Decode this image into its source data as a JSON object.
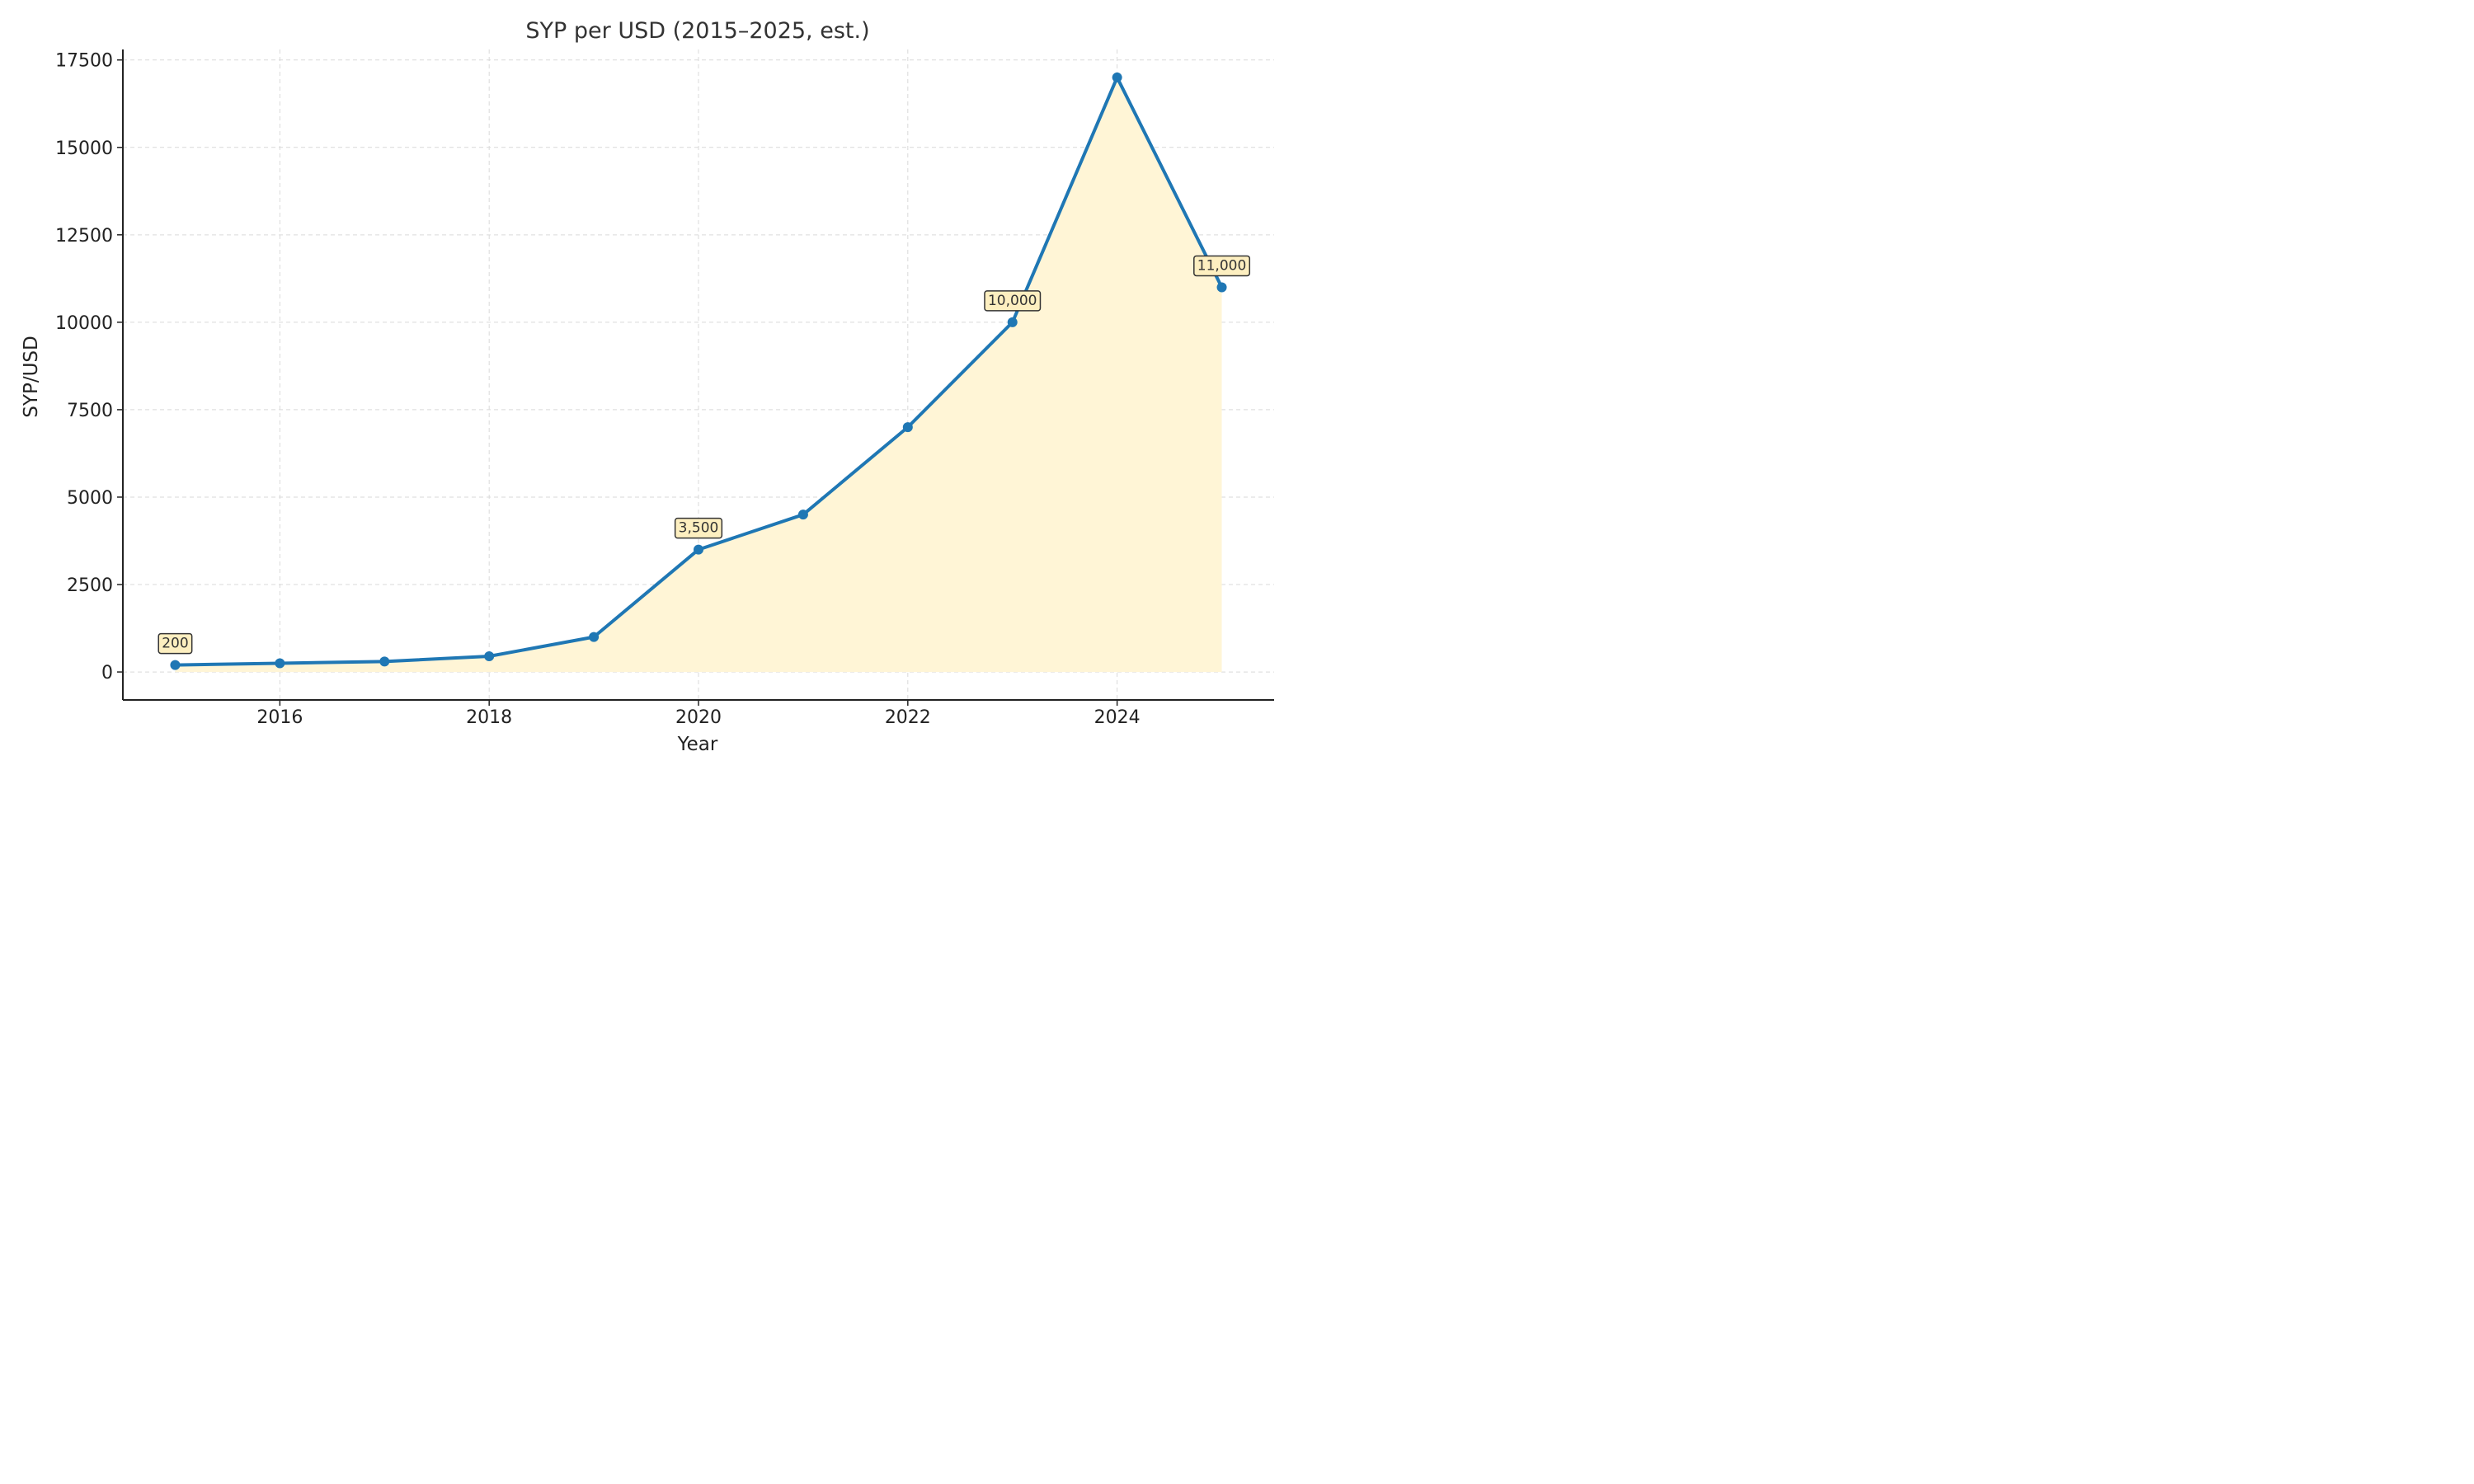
{
  "chart_data": {
    "type": "area",
    "title": "SYP per USD (2015–2025, est.)",
    "xlabel": "Year",
    "ylabel": "SYP/USD",
    "x": [
      2015,
      2016,
      2017,
      2018,
      2019,
      2020,
      2021,
      2022,
      2023,
      2024,
      2025
    ],
    "series": [
      {
        "values": [
          200,
          250,
          300,
          450,
          1000,
          3500,
          4500,
          7000,
          10000,
          17000,
          11000
        ]
      }
    ],
    "xlim": [
      2014.5,
      2025.5
    ],
    "ylim": [
      -800,
      17800
    ],
    "xticks": [
      2016,
      2018,
      2020,
      2022,
      2024
    ],
    "xtick_labels": [
      "2016",
      "2018",
      "2020",
      "2022",
      "2024"
    ],
    "yticks": [
      0,
      2500,
      5000,
      7500,
      10000,
      12500,
      15000,
      17500
    ],
    "ytick_labels": [
      "0",
      "2500",
      "5000",
      "7500",
      "10000",
      "12500",
      "15000",
      "17500"
    ],
    "annotations": [
      {
        "x": 2015,
        "value": 200,
        "text": "200"
      },
      {
        "x": 2020,
        "value": 3500,
        "text": "3,500"
      },
      {
        "x": 2023,
        "value": 10000,
        "text": "10,000"
      },
      {
        "x": 2025,
        "value": 11000,
        "text": "11,000"
      }
    ],
    "grid": true,
    "legend": "none",
    "colors": {
      "line": "#1f77b4",
      "fill": "#fff5d6",
      "grid": "#d9d9d9",
      "axis": "#222222",
      "annotation_bg": "#fdefc0",
      "annotation_border": "#333333"
    }
  }
}
